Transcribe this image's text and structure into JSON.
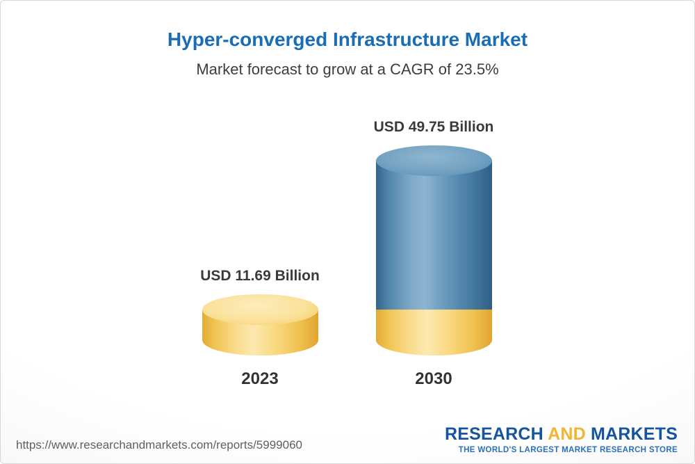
{
  "header": {
    "title": "Hyper-converged Infrastructure Market",
    "subtitle": "Market forecast to grow at a CAGR of 23.5%"
  },
  "chart_data": {
    "type": "bar",
    "subtype": "3d-cylinder",
    "title": "Hyper-converged Infrastructure Market",
    "subtitle": "Market forecast to grow at a CAGR of 23.5%",
    "cagr_percent": 23.5,
    "unit": "USD Billion",
    "categories": [
      "2023",
      "2030"
    ],
    "values": [
      11.69,
      49.75
    ],
    "value_labels": [
      "USD 11.69 Billion",
      "USD 49.75 Billion"
    ],
    "stacked_note": "2030 bar shows 2023 base in yellow with growth portion in blue",
    "colors": {
      "bar_2023": "#f8d472",
      "bar_2030_growth": "#4e86ae",
      "bar_2030_base": "#f8d472",
      "title": "#1a6cb5",
      "label_text": "#3a3a3a"
    },
    "legend": "none",
    "axes": "none"
  },
  "footer": {
    "url": "https://www.researchandmarkets.com/reports/5999060",
    "logo": {
      "part1": "RESEARCH",
      "part2": "AND",
      "part3": "MARKETS",
      "tagline": "THE WORLD'S LARGEST MARKET RESEARCH STORE"
    }
  }
}
